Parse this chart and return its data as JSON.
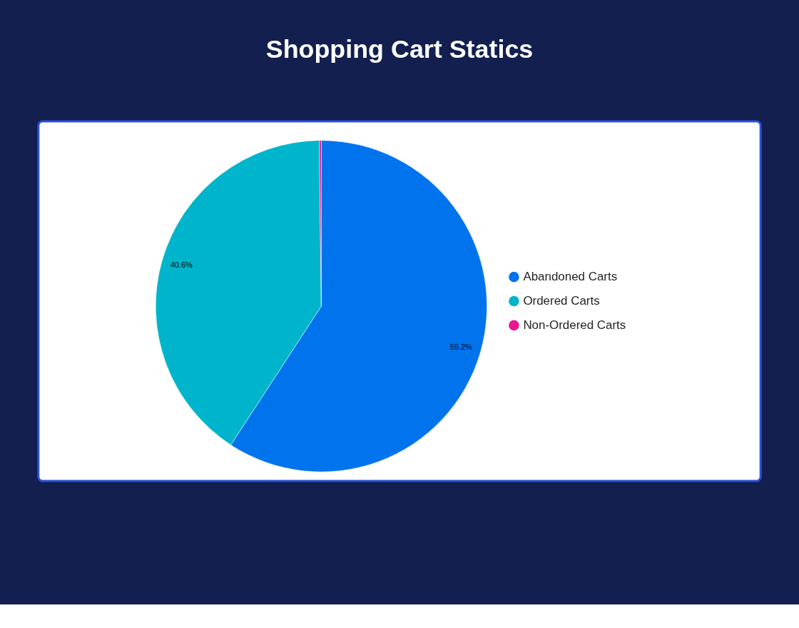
{
  "chart_data": {
    "type": "pie",
    "title": "Shopping Cart Statics",
    "categories": [
      "Abandoned Carts",
      "Ordered Carts",
      "Non-Ordered Carts"
    ],
    "values": [
      59.2,
      40.6,
      0.2
    ],
    "colors": [
      "#0073ed",
      "#00b5cb",
      "#e8168f"
    ],
    "value_labels": [
      "59.2%",
      "40.6%",
      null
    ],
    "legend": "right"
  }
}
